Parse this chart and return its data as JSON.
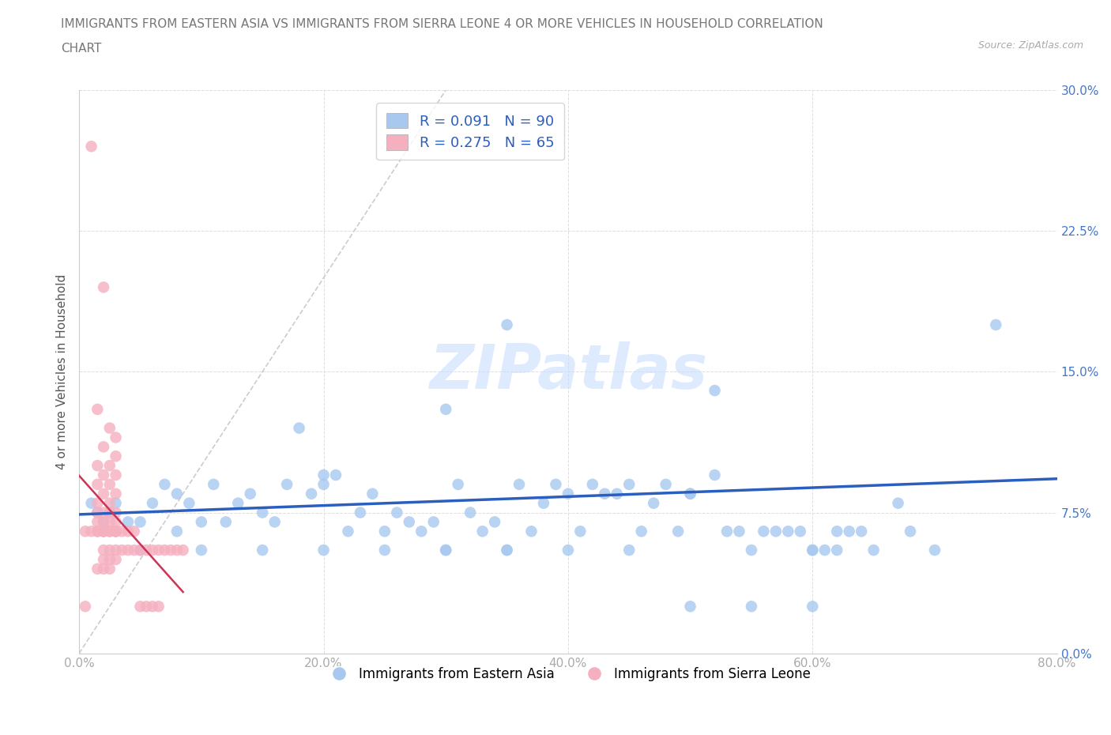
{
  "title_line1": "IMMIGRANTS FROM EASTERN ASIA VS IMMIGRANTS FROM SIERRA LEONE 4 OR MORE VEHICLES IN HOUSEHOLD CORRELATION",
  "title_line2": "CHART",
  "source": "Source: ZipAtlas.com",
  "ylabel": "4 or more Vehicles in Household",
  "xlim": [
    0.0,
    0.8
  ],
  "ylim": [
    0.0,
    0.3
  ],
  "xticks": [
    0.0,
    0.2,
    0.4,
    0.6,
    0.8
  ],
  "xticklabels": [
    "0.0%",
    "20.0%",
    "40.0%",
    "60.0%",
    "80.0%"
  ],
  "yticks": [
    0.0,
    0.075,
    0.15,
    0.225,
    0.3
  ],
  "yticklabels": [
    "0.0%",
    "7.5%",
    "15.0%",
    "22.5%",
    "30.0%"
  ],
  "blue_color": "#A8C8F0",
  "pink_color": "#F5B0C0",
  "blue_line_color": "#2B5FBF",
  "pink_line_color": "#CC3355",
  "diag_line_color": "#CCCCCC",
  "R_blue": 0.091,
  "N_blue": 90,
  "R_pink": 0.275,
  "N_pink": 65,
  "legend_label_blue": "Immigrants from Eastern Asia",
  "legend_label_pink": "Immigrants from Sierra Leone",
  "watermark": "ZIPatlas",
  "blue_scatter_x": [
    0.02,
    0.03,
    0.04,
    0.05,
    0.06,
    0.07,
    0.08,
    0.09,
    0.1,
    0.11,
    0.12,
    0.13,
    0.14,
    0.15,
    0.16,
    0.17,
    0.18,
    0.19,
    0.2,
    0.22,
    0.23,
    0.24,
    0.25,
    0.27,
    0.28,
    0.29,
    0.3,
    0.31,
    0.32,
    0.33,
    0.34,
    0.36,
    0.37,
    0.38,
    0.39,
    0.4,
    0.41,
    0.42,
    0.43,
    0.44,
    0.45,
    0.46,
    0.47,
    0.48,
    0.5,
    0.52,
    0.53,
    0.54,
    0.55,
    0.56,
    0.57,
    0.58,
    0.59,
    0.6,
    0.61,
    0.62,
    0.63,
    0.64,
    0.65,
    0.67,
    0.68,
    0.7,
    0.75,
    0.35,
    0.35,
    0.52,
    0.01,
    0.015,
    0.025,
    0.08,
    0.05,
    0.1,
    0.15,
    0.2,
    0.25,
    0.3,
    0.35,
    0.4,
    0.45,
    0.5,
    0.55,
    0.6,
    0.2,
    0.21,
    0.26,
    0.3,
    0.49,
    0.5,
    0.6,
    0.62
  ],
  "blue_scatter_y": [
    0.07,
    0.08,
    0.07,
    0.07,
    0.08,
    0.09,
    0.085,
    0.08,
    0.07,
    0.09,
    0.07,
    0.08,
    0.085,
    0.075,
    0.07,
    0.09,
    0.12,
    0.085,
    0.09,
    0.065,
    0.075,
    0.085,
    0.065,
    0.07,
    0.065,
    0.07,
    0.13,
    0.09,
    0.075,
    0.065,
    0.07,
    0.09,
    0.065,
    0.08,
    0.09,
    0.085,
    0.065,
    0.09,
    0.085,
    0.085,
    0.09,
    0.065,
    0.08,
    0.09,
    0.085,
    0.14,
    0.065,
    0.065,
    0.055,
    0.065,
    0.065,
    0.065,
    0.065,
    0.055,
    0.055,
    0.065,
    0.065,
    0.065,
    0.055,
    0.08,
    0.065,
    0.055,
    0.175,
    0.175,
    0.055,
    0.095,
    0.08,
    0.075,
    0.075,
    0.065,
    0.055,
    0.055,
    0.055,
    0.055,
    0.055,
    0.055,
    0.055,
    0.055,
    0.055,
    0.025,
    0.025,
    0.025,
    0.095,
    0.095,
    0.075,
    0.055,
    0.065,
    0.085,
    0.055,
    0.055
  ],
  "pink_scatter_x": [
    0.01,
    0.02,
    0.015,
    0.025,
    0.03,
    0.02,
    0.03,
    0.015,
    0.025,
    0.02,
    0.03,
    0.015,
    0.025,
    0.02,
    0.03,
    0.015,
    0.025,
    0.02,
    0.03,
    0.015,
    0.025,
    0.02,
    0.03,
    0.015,
    0.025,
    0.02,
    0.03,
    0.015,
    0.025,
    0.02,
    0.03,
    0.015,
    0.025,
    0.02,
    0.03,
    0.01,
    0.005,
    0.035,
    0.04,
    0.045,
    0.05,
    0.055,
    0.06,
    0.065,
    0.07,
    0.075,
    0.08,
    0.085,
    0.02,
    0.025,
    0.03,
    0.035,
    0.04,
    0.045,
    0.02,
    0.025,
    0.03,
    0.015,
    0.02,
    0.025,
    0.05,
    0.055,
    0.06,
    0.065,
    0.005
  ],
  "pink_scatter_y": [
    0.27,
    0.195,
    0.13,
    0.12,
    0.115,
    0.11,
    0.105,
    0.1,
    0.1,
    0.095,
    0.095,
    0.09,
    0.09,
    0.085,
    0.085,
    0.08,
    0.08,
    0.075,
    0.075,
    0.075,
    0.075,
    0.07,
    0.07,
    0.07,
    0.07,
    0.065,
    0.065,
    0.065,
    0.065,
    0.065,
    0.065,
    0.065,
    0.065,
    0.065,
    0.065,
    0.065,
    0.065,
    0.065,
    0.065,
    0.065,
    0.055,
    0.055,
    0.055,
    0.055,
    0.055,
    0.055,
    0.055,
    0.055,
    0.055,
    0.055,
    0.055,
    0.055,
    0.055,
    0.055,
    0.05,
    0.05,
    0.05,
    0.045,
    0.045,
    0.045,
    0.025,
    0.025,
    0.025,
    0.025,
    0.025
  ]
}
